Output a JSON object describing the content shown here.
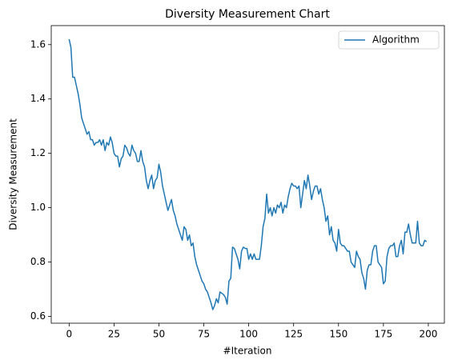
{
  "chart_data": {
    "type": "line",
    "title": "Diversity Measurement Chart",
    "xlabel": "#Iteration",
    "ylabel": "Diversity Measurement",
    "x": [
      0,
      1,
      2,
      3,
      4,
      5,
      6,
      7,
      8,
      9,
      10,
      11,
      12,
      13,
      14,
      15,
      16,
      17,
      18,
      19,
      20,
      21,
      22,
      23,
      24,
      25,
      26,
      27,
      28,
      29,
      30,
      31,
      32,
      33,
      34,
      35,
      36,
      37,
      38,
      39,
      40,
      41,
      42,
      43,
      44,
      45,
      46,
      47,
      48,
      49,
      50,
      51,
      52,
      53,
      54,
      55,
      56,
      57,
      58,
      59,
      60,
      61,
      62,
      63,
      64,
      65,
      66,
      67,
      68,
      69,
      70,
      71,
      72,
      73,
      74,
      75,
      76,
      77,
      78,
      79,
      80,
      81,
      82,
      83,
      84,
      85,
      86,
      87,
      88,
      89,
      90,
      91,
      92,
      93,
      94,
      95,
      96,
      97,
      98,
      99,
      100,
      101,
      102,
      103,
      104,
      105,
      106,
      107,
      108,
      109,
      110,
      111,
      112,
      113,
      114,
      115,
      116,
      117,
      118,
      119,
      120,
      121,
      122,
      123,
      124,
      125,
      126,
      127,
      128,
      129,
      130,
      131,
      132,
      133,
      134,
      135,
      136,
      137,
      138,
      139,
      140,
      141,
      142,
      143,
      144,
      145,
      146,
      147,
      148,
      149,
      150,
      151,
      152,
      153,
      154,
      155,
      156,
      157,
      158,
      159,
      160,
      161,
      162,
      163,
      164,
      165,
      166,
      167,
      168,
      169,
      170,
      171,
      172,
      173,
      174,
      175,
      176,
      177,
      178,
      179,
      180,
      181,
      182,
      183,
      184,
      185,
      186,
      187,
      188,
      189,
      190,
      191,
      192,
      193,
      194,
      195,
      196,
      197,
      198,
      199
    ],
    "series": [
      {
        "name": "Algorithm",
        "color": "#1f77b4",
        "values": [
          1.62,
          1.59,
          1.48,
          1.48,
          1.45,
          1.42,
          1.38,
          1.33,
          1.31,
          1.29,
          1.27,
          1.28,
          1.25,
          1.25,
          1.23,
          1.24,
          1.24,
          1.25,
          1.23,
          1.25,
          1.21,
          1.24,
          1.23,
          1.26,
          1.24,
          1.2,
          1.19,
          1.19,
          1.15,
          1.18,
          1.19,
          1.23,
          1.22,
          1.2,
          1.19,
          1.23,
          1.21,
          1.2,
          1.17,
          1.17,
          1.21,
          1.17,
          1.15,
          1.1,
          1.07,
          1.1,
          1.12,
          1.07,
          1.1,
          1.11,
          1.16,
          1.13,
          1.08,
          1.05,
          1.02,
          0.99,
          1.01,
          1.03,
          0.99,
          0.97,
          0.94,
          0.92,
          0.9,
          0.88,
          0.93,
          0.92,
          0.88,
          0.9,
          0.86,
          0.87,
          0.82,
          0.79,
          0.77,
          0.75,
          0.73,
          0.72,
          0.7,
          0.69,
          0.67,
          0.65,
          0.625,
          0.64,
          0.665,
          0.65,
          0.69,
          0.685,
          0.68,
          0.67,
          0.645,
          0.73,
          0.74,
          0.855,
          0.85,
          0.83,
          0.81,
          0.775,
          0.84,
          0.855,
          0.85,
          0.85,
          0.81,
          0.83,
          0.81,
          0.83,
          0.81,
          0.81,
          0.81,
          0.86,
          0.93,
          0.96,
          1.05,
          0.98,
          1.0,
          0.97,
          1.0,
          0.98,
          1.01,
          1.0,
          1.02,
          0.98,
          1.01,
          1.0,
          1.04,
          1.07,
          1.09,
          1.08,
          1.08,
          1.07,
          1.08,
          1.0,
          1.05,
          1.1,
          1.07,
          1.12,
          1.08,
          1.03,
          1.06,
          1.08,
          1.08,
          1.05,
          1.07,
          1.03,
          1.0,
          0.95,
          0.97,
          0.9,
          0.93,
          0.88,
          0.87,
          0.84,
          0.92,
          0.87,
          0.86,
          0.86,
          0.85,
          0.84,
          0.84,
          0.8,
          0.79,
          0.78,
          0.84,
          0.82,
          0.81,
          0.76,
          0.74,
          0.7,
          0.77,
          0.79,
          0.79,
          0.84,
          0.86,
          0.86,
          0.8,
          0.79,
          0.78,
          0.72,
          0.73,
          0.82,
          0.85,
          0.86,
          0.86,
          0.87,
          0.82,
          0.82,
          0.86,
          0.88,
          0.83,
          0.91,
          0.91,
          0.94,
          0.9,
          0.87,
          0.87,
          0.87,
          0.95,
          0.87,
          0.86,
          0.86,
          0.88,
          0.875
        ]
      }
    ],
    "xlim": [
      -9.95,
      208.95
    ],
    "xticks": [
      0,
      25,
      50,
      75,
      100,
      125,
      150,
      175,
      200
    ],
    "ylim": [
      0.575,
      1.67
    ],
    "yticks": [
      0.6,
      0.8,
      {
        "value": 1.0,
        "label": "1.0"
      },
      1.2,
      1.4,
      1.6
    ],
    "legend": "upper right"
  }
}
